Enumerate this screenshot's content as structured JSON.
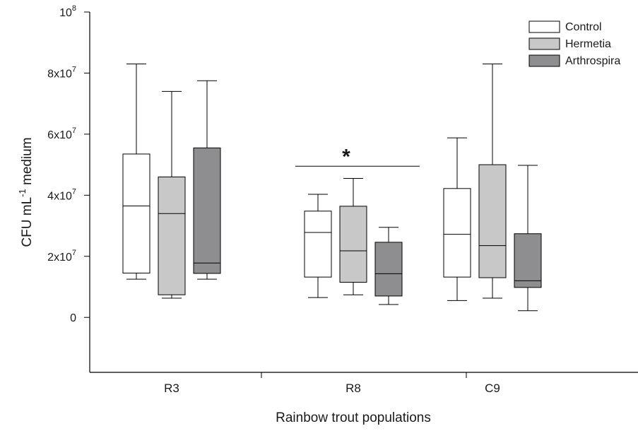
{
  "chart_data": {
    "type": "box",
    "title": "",
    "xlabel": "Rainbow trout populations",
    "ylabel": {
      "main": "CFU mL",
      "sup": "-1",
      "rest": " medium"
    },
    "ylim": [
      -18000000,
      100000000
    ],
    "yticks": [
      {
        "value": 0,
        "base": "0",
        "exp": ""
      },
      {
        "value": 20000000,
        "base": "2x10",
        "exp": "7"
      },
      {
        "value": 40000000,
        "base": "4x10",
        "exp": "7"
      },
      {
        "value": 60000000,
        "base": "6x10",
        "exp": "7"
      },
      {
        "value": 80000000,
        "base": "8x10",
        "exp": "7"
      },
      {
        "value": 100000000,
        "base": "10",
        "exp": "8"
      }
    ],
    "categories": [
      "R3",
      "R8",
      "C9"
    ],
    "legend_position": "top-right",
    "series": [
      {
        "name": "Control",
        "color": "#ffffff",
        "boxes": [
          {
            "min": 12500000,
            "q1": 14500000,
            "median": 36500000,
            "q3": 53500000,
            "max": 83000000
          },
          {
            "min": 6500000,
            "q1": 13200000,
            "median": 27800000,
            "q3": 34800000,
            "max": 40300000
          },
          {
            "min": 5500000,
            "q1": 13200000,
            "median": 27200000,
            "q3": 42200000,
            "max": 58800000
          }
        ]
      },
      {
        "name": "Hermetia",
        "color": "#c8c8c8",
        "boxes": [
          {
            "min": 6300000,
            "q1": 7400000,
            "median": 34000000,
            "q3": 46000000,
            "max": 74000000
          },
          {
            "min": 7400000,
            "q1": 11500000,
            "median": 21800000,
            "q3": 36400000,
            "max": 45500000
          },
          {
            "min": 6300000,
            "q1": 13000000,
            "median": 23500000,
            "q3": 50000000,
            "max": 83000000
          }
        ]
      },
      {
        "name": "Arthrospira",
        "color": "#8e8e90",
        "boxes": [
          {
            "min": 12500000,
            "q1": 14400000,
            "median": 17800000,
            "q3": 55500000,
            "max": 77500000
          },
          {
            "min": 4200000,
            "q1": 7000000,
            "median": 14300000,
            "q3": 24600000,
            "max": 29500000
          },
          {
            "min": 2200000,
            "q1": 9800000,
            "median": 12000000,
            "q3": 27400000,
            "max": 49800000
          }
        ]
      }
    ],
    "annotations": [
      {
        "text": "*",
        "category": "R8",
        "line_value": 49500000
      }
    ]
  }
}
